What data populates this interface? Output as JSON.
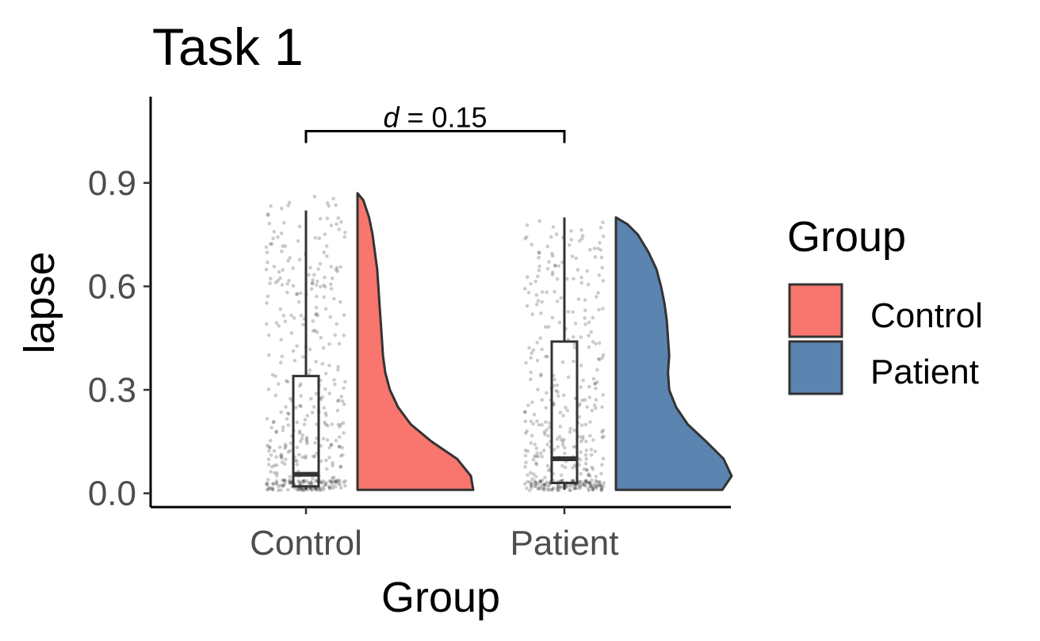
{
  "chart_data": {
    "type": "raincloud",
    "title": "Task 1",
    "xlabel": "Group",
    "ylabel": "lapse",
    "categories": [
      "Control",
      "Patient"
    ],
    "ylim": [
      -0.04,
      1.15
    ],
    "yticks": [
      0.0,
      0.3,
      0.6,
      0.9
    ],
    "ytick_labels": [
      "0.0",
      "0.3",
      "0.6",
      "0.9"
    ],
    "grid": false,
    "legend": {
      "title": "Group",
      "position": "right",
      "entries": [
        {
          "label": "Control",
          "color": "#F8766D"
        },
        {
          "label": "Patient",
          "color": "#5B84B1"
        }
      ]
    },
    "annotation": {
      "label_italic": "d",
      "label_rest": " = 0.15",
      "between": [
        "Control",
        "Patient"
      ],
      "y": 1.05
    },
    "boxes": [
      {
        "group": "Control",
        "lower_whisker": 0.01,
        "q1": 0.02,
        "median": 0.055,
        "q3": 0.34,
        "upper_whisker": 0.82
      },
      {
        "group": "Patient",
        "lower_whisker": 0.01,
        "q1": 0.03,
        "median": 0.1,
        "q3": 0.44,
        "upper_whisker": 0.8
      }
    ],
    "densities": [
      {
        "group": "Control",
        "color": "#F8766D",
        "max": 0.87,
        "profile": [
          [
            0.01,
            1.0
          ],
          [
            0.05,
            0.98
          ],
          [
            0.1,
            0.86
          ],
          [
            0.15,
            0.64
          ],
          [
            0.2,
            0.46
          ],
          [
            0.25,
            0.35
          ],
          [
            0.3,
            0.28
          ],
          [
            0.35,
            0.24
          ],
          [
            0.4,
            0.22
          ],
          [
            0.45,
            0.21
          ],
          [
            0.5,
            0.2
          ],
          [
            0.55,
            0.19
          ],
          [
            0.6,
            0.18
          ],
          [
            0.65,
            0.17
          ],
          [
            0.7,
            0.15
          ],
          [
            0.75,
            0.13
          ],
          [
            0.8,
            0.1
          ],
          [
            0.85,
            0.05
          ],
          [
            0.87,
            0.0
          ]
        ]
      },
      {
        "group": "Patient",
        "color": "#5B84B1",
        "max": 0.8,
        "profile": [
          [
            0.01,
            0.92
          ],
          [
            0.05,
            1.0
          ],
          [
            0.1,
            0.93
          ],
          [
            0.15,
            0.78
          ],
          [
            0.2,
            0.62
          ],
          [
            0.25,
            0.52
          ],
          [
            0.3,
            0.46
          ],
          [
            0.35,
            0.45
          ],
          [
            0.4,
            0.46
          ],
          [
            0.45,
            0.45
          ],
          [
            0.5,
            0.44
          ],
          [
            0.55,
            0.42
          ],
          [
            0.6,
            0.39
          ],
          [
            0.65,
            0.35
          ],
          [
            0.7,
            0.28
          ],
          [
            0.75,
            0.19
          ],
          [
            0.78,
            0.1
          ],
          [
            0.8,
            0.0
          ]
        ]
      }
    ],
    "jitter": {
      "point_color": "#000000",
      "point_opacity": 0.2
    }
  }
}
